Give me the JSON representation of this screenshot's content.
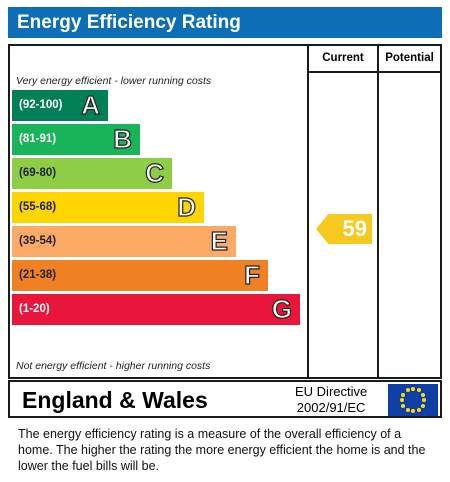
{
  "header": {
    "title": "Energy Efficiency Rating"
  },
  "columns": {
    "current": "Current",
    "potential": "Potential"
  },
  "notes": {
    "top": "Very energy efficient - lower running costs",
    "bottom": "Not energy efficient - higher running costs"
  },
  "bands": [
    {
      "range": "(92-100)",
      "letter": "A",
      "color": "#008054"
    },
    {
      "range": "(81-91)",
      "letter": "B",
      "color": "#19b459"
    },
    {
      "range": "(69-80)",
      "letter": "C",
      "color": "#8dce46"
    },
    {
      "range": "(55-68)",
      "letter": "D",
      "color": "#ffd500"
    },
    {
      "range": "(39-54)",
      "letter": "E",
      "color": "#fcaa65"
    },
    {
      "range": "(21-38)",
      "letter": "F",
      "color": "#ef8023"
    },
    {
      "range": "(1-20)",
      "letter": "G",
      "color": "#e9153b"
    }
  ],
  "rating": {
    "current": "59",
    "current_band": "D",
    "arrow_color": "#f6c91e"
  },
  "footer": {
    "region": "England & Wales",
    "directive_line1": "EU Directive",
    "directive_line2": "2002/91/EC",
    "flag_icon": "eu-flag-icon"
  },
  "description": "The energy efficiency rating is a measure of the overall efficiency of a home.  The higher the rating the more energy efficient the home is and the lower the fuel bills will be."
}
